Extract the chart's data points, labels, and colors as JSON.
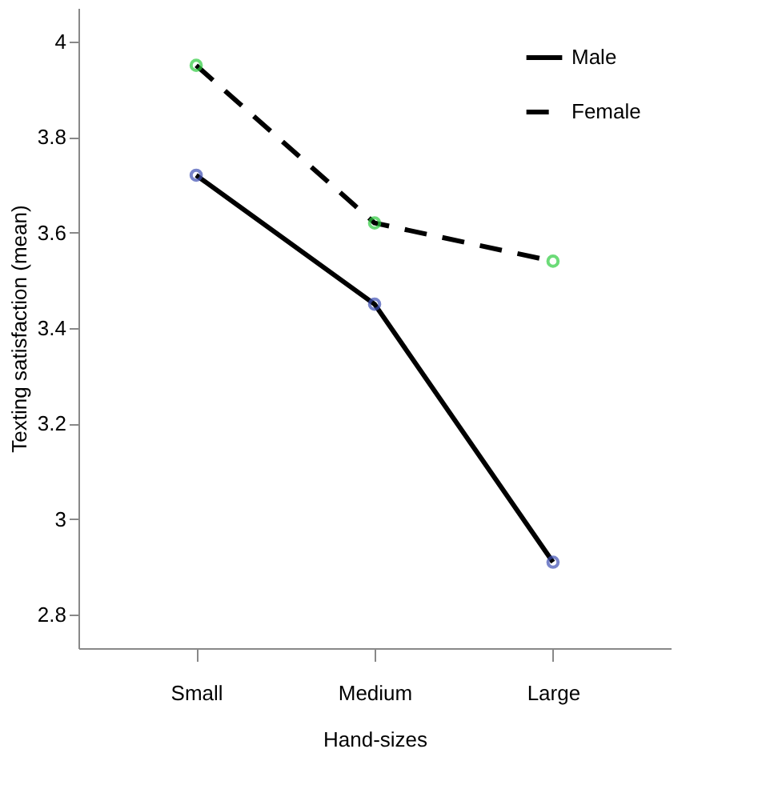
{
  "chart_data": {
    "type": "line",
    "xlabel": "Hand-sizes",
    "ylabel": "Texting satisfaction (mean)",
    "categories": [
      "Small",
      "Medium",
      "Large"
    ],
    "series": [
      {
        "name": "Male",
        "color": "#000000",
        "colors": [
          "#3f51b5",
          "#3f51b5",
          "#3f51b5"
        ],
        "line_style": "solid",
        "values": [
          3.72,
          3.45,
          2.91
        ]
      },
      {
        "name": "Female",
        "color": "#000000",
        "colors": [
          "#2ecc40",
          "#2ecc40",
          "#2ecc40"
        ],
        "line_style": "dashed",
        "values": [
          3.95,
          3.62,
          3.54
        ]
      }
    ],
    "ylim": [
      2.73,
      4.07
    ],
    "yticks": [
      2.8,
      3,
      3.2,
      3.4,
      3.6,
      3.8,
      4
    ],
    "grid": false,
    "legend": "top right",
    "marker": "circle"
  }
}
